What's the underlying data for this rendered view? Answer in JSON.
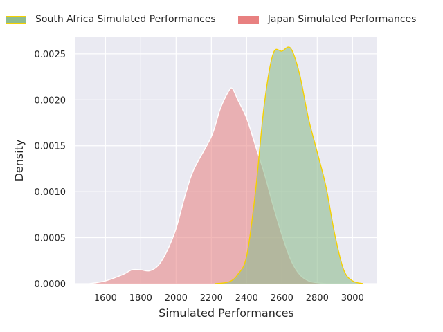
{
  "chart_data": {
    "type": "area",
    "subtype": "kde",
    "title": "",
    "xlabel": "Simulated Performances",
    "ylabel": "Density",
    "xlim": [
      1430,
      3140
    ],
    "ylim": [
      0,
      0.00268
    ],
    "xticks": [
      "1600",
      "1800",
      "2000",
      "2200",
      "2400",
      "2600",
      "2800",
      "3000"
    ],
    "yticks": [
      "0.0000",
      "0.0005",
      "0.0010",
      "0.0015",
      "0.0020",
      "0.0025"
    ],
    "grid": true,
    "legend_placement": "top, outside",
    "series": [
      {
        "name": "South Africa Simulated Performances",
        "fill": "#8fbc8f",
        "edge": "#f5d000",
        "x": [
          2220,
          2300,
          2350,
          2400,
          2450,
          2500,
          2550,
          2600,
          2650,
          2700,
          2750,
          2800,
          2850,
          2900,
          2950,
          3000,
          3060
        ],
        "y": [
          0,
          2e-05,
          0.0001,
          0.0003,
          0.001,
          0.00195,
          0.0025,
          0.00253,
          0.00256,
          0.00228,
          0.0018,
          0.00143,
          0.00105,
          0.00053,
          0.00015,
          3e-05,
          0
        ]
      },
      {
        "name": "Japan Simulated Performances",
        "fill": "#e88080",
        "edge": "#ffffff",
        "x": [
          1510,
          1600,
          1700,
          1750,
          1800,
          1850,
          1900,
          1950,
          2000,
          2050,
          2100,
          2200,
          2250,
          2300,
          2320,
          2350,
          2400,
          2450,
          2500,
          2550,
          2600,
          2650,
          2700,
          2750,
          2800,
          2850
        ],
        "y": [
          0,
          3e-05,
          0.0001,
          0.00015,
          0.00015,
          0.00014,
          0.0002,
          0.00036,
          0.0006,
          0.00095,
          0.00124,
          0.0016,
          0.0019,
          0.0021,
          0.00212,
          0.002,
          0.0018,
          0.0015,
          0.0012,
          0.00085,
          0.00053,
          0.00026,
          0.0001,
          3e-05,
          1e-05,
          0
        ]
      }
    ]
  }
}
